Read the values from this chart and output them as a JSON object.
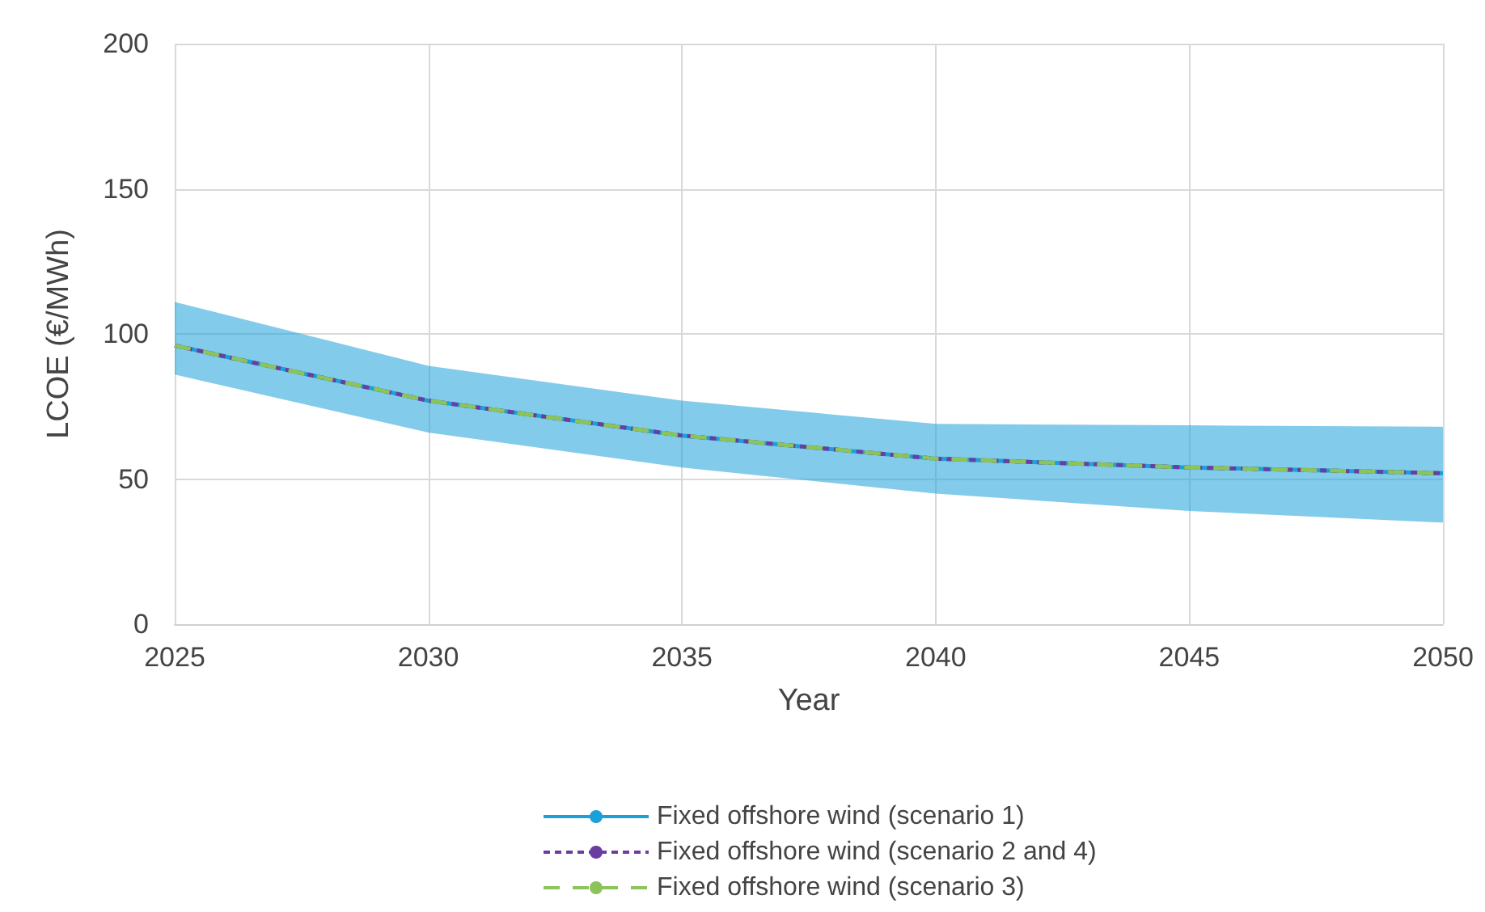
{
  "chart_data": {
    "type": "line",
    "xlabel": "Year",
    "ylabel": "LCOE (€/MWh)",
    "x": [
      2025,
      2030,
      2035,
      2040,
      2045,
      2050
    ],
    "series": [
      {
        "name": "Fixed offshore wind (scenario 1)",
        "color": "#1ba1d8",
        "line_style": "solid",
        "values": [
          96,
          77,
          65,
          57,
          54,
          52
        ],
        "lower": [
          86,
          66,
          54,
          45,
          39,
          35
        ],
        "upper": [
          111,
          89,
          77,
          69,
          68.5,
          68
        ]
      },
      {
        "name": "Fixed offshore wind (scenario 2 and 4)",
        "color": "#6a3ea1",
        "line_style": "dashed",
        "values": [
          96,
          77,
          65,
          57,
          54,
          52
        ]
      },
      {
        "name": "Fixed offshore wind (scenario 3)",
        "color": "#8cc35a",
        "line_style": "dashed",
        "values": [
          96,
          77,
          65,
          57,
          54,
          52
        ]
      }
    ],
    "xlim": [
      2025,
      2050
    ],
    "xticks": [
      2025,
      2030,
      2035,
      2040,
      2045,
      2050
    ],
    "ylim": [
      0,
      200
    ],
    "yticks": [
      0,
      50,
      100,
      150,
      200
    ],
    "grid": true,
    "legend": "bottom",
    "marker": "none"
  }
}
